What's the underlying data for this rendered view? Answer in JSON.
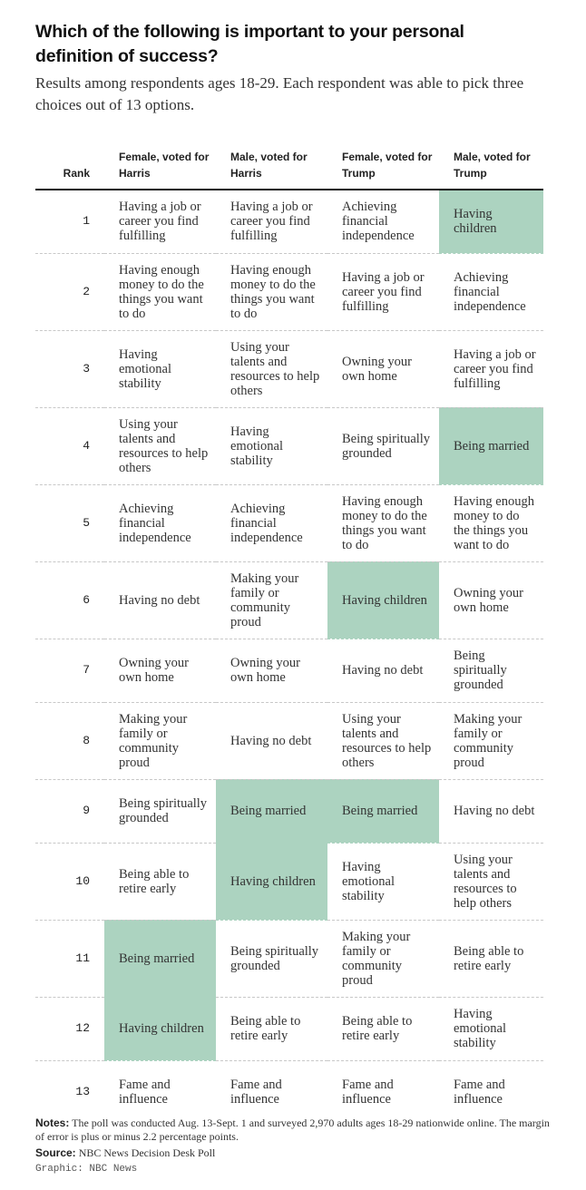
{
  "title": "Which of the following is important to your personal definition of success?",
  "subtitle": "Results among respondents ages 18-29. Each respondent was able to pick three choices out of 13 options.",
  "chart_data": {
    "type": "table",
    "rank_header": "Rank",
    "columns": [
      "Female, voted for Harris",
      "Male, voted for Harris",
      "Female, voted for Trump",
      "Male, voted for Trump"
    ],
    "highlight_color": "#acd3c0",
    "highlighted_items": [
      "Having children",
      "Being married"
    ],
    "rows": [
      {
        "rank": "1",
        "cells": [
          "Having a job or career you find fulfilling",
          "Having a job or career you find fulfilling",
          "Achieving financial independence",
          "Having children"
        ]
      },
      {
        "rank": "2",
        "cells": [
          "Having enough money to do the things you want to do",
          "Having enough money to do the things you want to do",
          "Having a job or career you find fulfilling",
          "Achieving financial independence"
        ]
      },
      {
        "rank": "3",
        "cells": [
          "Having emotional stability",
          "Using your talents and resources to help others",
          "Owning your own home",
          "Having a job or career you find fulfilling"
        ]
      },
      {
        "rank": "4",
        "cells": [
          "Using your talents and resources to help others",
          "Having emotional stability",
          "Being spiritually grounded",
          "Being married"
        ]
      },
      {
        "rank": "5",
        "cells": [
          "Achieving financial independence",
          "Achieving financial independence",
          "Having enough money to do the things you want to do",
          "Having enough money to do the things you want to do"
        ]
      },
      {
        "rank": "6",
        "cells": [
          "Having no debt",
          "Making your family or community proud",
          "Having children",
          "Owning your own home"
        ]
      },
      {
        "rank": "7",
        "cells": [
          "Owning your own home",
          "Owning your own home",
          "Having no debt",
          "Being spiritually grounded"
        ]
      },
      {
        "rank": "8",
        "cells": [
          "Making your family or community proud",
          "Having no debt",
          "Using your talents and resources to help others",
          "Making your family or community proud"
        ]
      },
      {
        "rank": "9",
        "cells": [
          "Being spiritually grounded",
          "Being married",
          "Being married",
          "Having no debt"
        ]
      },
      {
        "rank": "10",
        "cells": [
          "Being able to retire early",
          "Having children",
          "Having emotional stability",
          "Using your talents and resources to help others"
        ]
      },
      {
        "rank": "11",
        "cells": [
          "Being married",
          "Being spiritually grounded",
          "Making your family or community proud",
          "Being able to retire early"
        ]
      },
      {
        "rank": "12",
        "cells": [
          "Having children",
          "Being able to retire early",
          "Being able to retire early",
          "Having emotional stability"
        ]
      },
      {
        "rank": "13",
        "cells": [
          "Fame and influence",
          "Fame and influence",
          "Fame and influence",
          "Fame and influence"
        ]
      }
    ]
  },
  "footer": {
    "notes_label": "Notes:",
    "notes_text": " The poll was conducted Aug. 13-Sept. 1 and surveyed 2,970 adults ages 18-29 nationwide online. The margin of error is plus or minus 2.2 percentage points.",
    "source_label": "Source:",
    "source_text": " NBC News Decision Desk Poll",
    "credit": "Graphic: NBC News"
  }
}
